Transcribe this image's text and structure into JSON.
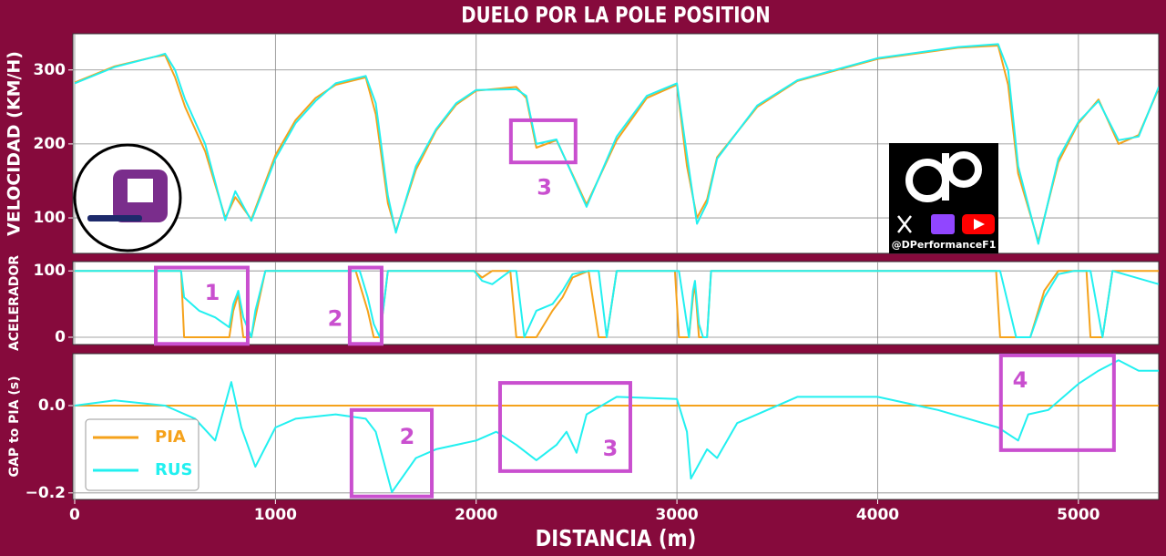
{
  "chart_data": [
    {
      "type": "line",
      "title": "DUELO POR LA POLE POSITION",
      "ylabel": "VELOCIDAD (KM/H)",
      "watermark": "@DPerformanceF1",
      "x": [
        0,
        200,
        400,
        450,
        500,
        550,
        650,
        750,
        800,
        880,
        1000,
        1100,
        1200,
        1300,
        1450,
        1500,
        1560,
        1600,
        1700,
        1800,
        1900,
        2000,
        2200,
        2250,
        2300,
        2400,
        2550,
        2700,
        2850,
        3000,
        3050,
        3100,
        3150,
        3200,
        3400,
        3600,
        4000,
        4400,
        4600,
        4650,
        4700,
        4800,
        4900,
        5000,
        5100,
        5200,
        5300,
        5400
      ],
      "series": [
        {
          "color": "#f5a21b",
          "values": [
            283,
            305,
            318,
            320,
            290,
            250,
            190,
            100,
            128,
            98,
            185,
            232,
            262,
            280,
            290,
            240,
            120,
            82,
            165,
            218,
            253,
            272,
            277,
            262,
            195,
            205,
            118,
            205,
            262,
            280,
            170,
            100,
            125,
            182,
            250,
            285,
            315,
            330,
            333,
            280,
            160,
            68,
            175,
            228,
            260,
            200,
            212,
            275
          ]
        },
        {
          "color": "#22f0f0",
          "values": [
            282,
            304,
            318,
            322,
            300,
            260,
            200,
            97,
            136,
            96,
            180,
            228,
            258,
            282,
            292,
            255,
            130,
            80,
            170,
            220,
            255,
            273,
            274,
            265,
            200,
            206,
            115,
            210,
            265,
            282,
            185,
            92,
            120,
            180,
            252,
            286,
            316,
            331,
            335,
            300,
            170,
            65,
            180,
            230,
            258,
            205,
            210,
            277
          ]
        }
      ],
      "xlim": [
        -9,
        5400
      ],
      "ylim": [
        52,
        349
      ],
      "yticks": [
        100,
        200,
        300
      ],
      "grid": true,
      "annotations": [
        {
          "text": "3",
          "x": 2340,
          "y": 140,
          "box_x": [
            2173,
            2495
          ],
          "box_y": [
            175,
            232
          ]
        }
      ]
    },
    {
      "type": "line",
      "ylabel": "ACELERADOR",
      "x": [
        0,
        500,
        530,
        545,
        620,
        700,
        770,
        790,
        815,
        840,
        880,
        900,
        950,
        1400,
        1420,
        1460,
        1490,
        1520,
        1560,
        1990,
        2030,
        2080,
        2170,
        2200,
        2240,
        2300,
        2380,
        2430,
        2480,
        2560,
        2610,
        2650,
        2700,
        2990,
        3010,
        3060,
        3080,
        3090,
        3110,
        3130,
        3150,
        3170,
        4590,
        4610,
        4690,
        4760,
        4830,
        4900,
        4980,
        5040,
        5060,
        5120,
        5170,
        5400
      ],
      "series": [
        {
          "color": "#f5a21b",
          "values": [
            100,
            100,
            100,
            0,
            0,
            0,
            0,
            40,
            65,
            0,
            0,
            30,
            100,
            100,
            80,
            40,
            0,
            0,
            100,
            100,
            90,
            100,
            100,
            0,
            0,
            0,
            40,
            60,
            90,
            100,
            0,
            0,
            100,
            100,
            0,
            0,
            60,
            80,
            0,
            0,
            0,
            100,
            100,
            0,
            0,
            0,
            70,
            100,
            100,
            100,
            0,
            0,
            100,
            100
          ]
        },
        {
          "color": "#22f0f0",
          "values": [
            100,
            100,
            100,
            60,
            40,
            30,
            15,
            50,
            70,
            30,
            0,
            40,
            100,
            100,
            100,
            60,
            20,
            0,
            100,
            100,
            85,
            80,
            100,
            100,
            0,
            40,
            50,
            70,
            95,
            100,
            100,
            0,
            100,
            100,
            100,
            0,
            70,
            85,
            20,
            0,
            0,
            100,
            100,
            100,
            0,
            0,
            60,
            95,
            100,
            100,
            100,
            0,
            100,
            80
          ]
        }
      ],
      "xlim": [
        -9,
        5400
      ],
      "ylim": [
        -11,
        114
      ],
      "yticks": [
        0,
        100
      ],
      "grid": true,
      "annotations": [
        {
          "text": "1",
          "x": 685,
          "y": 66,
          "box_x": [
            404,
            862
          ],
          "box_y": [
            -10,
            105
          ]
        },
        {
          "text": "2",
          "x": 1298,
          "y": 27,
          "box_x": [
            1370,
            1529
          ],
          "box_y": [
            -10,
            105
          ]
        }
      ]
    },
    {
      "type": "line",
      "ylabel": "GAP to PIA (s)",
      "xlabel": "DISTANCIA (m)",
      "x": [
        0,
        200,
        450,
        600,
        700,
        780,
        830,
        900,
        1000,
        1100,
        1300,
        1450,
        1500,
        1580,
        1700,
        1800,
        2000,
        2100,
        2200,
        2300,
        2400,
        2450,
        2500,
        2550,
        2700,
        3000,
        3050,
        3070,
        3150,
        3200,
        3300,
        3450,
        3600,
        4000,
        4300,
        4600,
        4700,
        4750,
        4850,
        5000,
        5100,
        5200,
        5300,
        5400
      ],
      "series": [
        {
          "name": "PIA",
          "color": "#f5a21b",
          "values": [
            0,
            0,
            0,
            0,
            0,
            0,
            0,
            0,
            0,
            0,
            0,
            0,
            0,
            0,
            0,
            0,
            0,
            0,
            0,
            0,
            0,
            0,
            0,
            0,
            0,
            0,
            0,
            0,
            0,
            0,
            0,
            0,
            0,
            0,
            0,
            0,
            0,
            0,
            0,
            0,
            0,
            0,
            0,
            0
          ]
        },
        {
          "name": "RUS",
          "color": "#22f0f0",
          "values": [
            0,
            0.012,
            0,
            -0.03,
            -0.08,
            0.054,
            -0.05,
            -0.14,
            -0.05,
            -0.03,
            -0.02,
            -0.03,
            -0.06,
            -0.198,
            -0.12,
            -0.1,
            -0.08,
            -0.06,
            -0.09,
            -0.125,
            -0.09,
            -0.06,
            -0.108,
            -0.02,
            0.02,
            0.015,
            -0.06,
            -0.167,
            -0.1,
            -0.12,
            -0.04,
            -0.01,
            0.02,
            0.02,
            -0.01,
            -0.05,
            -0.08,
            -0.02,
            -0.01,
            0.05,
            0.08,
            0.104,
            0.08,
            0.08
          ]
        }
      ],
      "xlim": [
        -9,
        5400
      ],
      "ylim": [
        -0.215,
        0.119
      ],
      "yticks": [
        {
          "value": -0.2,
          "label": "−0.2"
        },
        {
          "value": 0,
          "label": "0.0"
        }
      ],
      "xticks": [
        0,
        1000,
        2000,
        3000,
        4000,
        5000
      ],
      "grid": true,
      "legend": "lower left",
      "annotations": [
        {
          "text": "2",
          "x": 1656,
          "y": -0.073,
          "box_x": [
            1379,
            1779
          ],
          "box_y": [
            -0.208,
            -0.01
          ]
        },
        {
          "text": "3",
          "x": 2668,
          "y": -0.1,
          "box_x": [
            2119,
            2768
          ],
          "box_y": [
            -0.15,
            0.052
          ]
        },
        {
          "text": "4",
          "x": 4710,
          "y": 0.056,
          "box_x": [
            4614,
            5177
          ],
          "box_y": [
            -0.102,
            0.115
          ]
        }
      ]
    }
  ]
}
